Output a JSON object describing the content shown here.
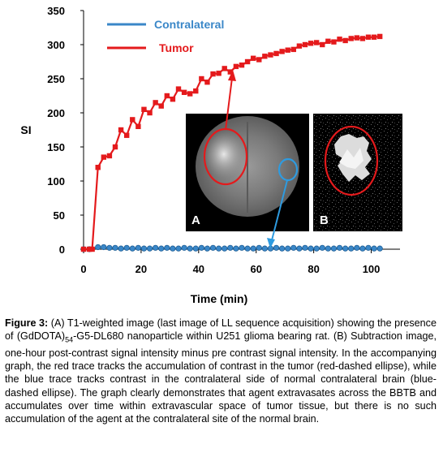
{
  "chart_data": {
    "type": "line",
    "xlabel": "Time (min)",
    "ylabel": "SI",
    "xlim": [
      0,
      110
    ],
    "ylim": [
      0,
      350
    ],
    "x_ticks": [
      "0",
      "20",
      "40",
      "60",
      "80",
      "100"
    ],
    "y_ticks": [
      "0",
      "50",
      "100",
      "150",
      "200",
      "250",
      "300",
      "350"
    ],
    "legend_position": "top",
    "series": [
      {
        "name": "Contralateral",
        "color": "#3a87c8",
        "marker": "circle",
        "x": [
          0,
          2,
          5,
          7,
          9,
          11,
          13,
          15,
          17,
          19,
          21,
          23,
          25,
          27,
          29,
          31,
          33,
          35,
          37,
          39,
          41,
          43,
          45,
          47,
          49,
          51,
          53,
          55,
          57,
          59,
          61,
          63,
          65,
          67,
          69,
          71,
          73,
          75,
          77,
          79,
          81,
          83,
          85,
          87,
          89,
          91,
          93,
          95,
          97,
          99,
          101,
          103
        ],
        "values": [
          0,
          0,
          3,
          3,
          2,
          2,
          1,
          2,
          1,
          2,
          1,
          1,
          2,
          1,
          2,
          1,
          1,
          2,
          1,
          1,
          2,
          1,
          2,
          1,
          1,
          2,
          1,
          2,
          1,
          1,
          2,
          1,
          1,
          2,
          1,
          1,
          2,
          1,
          2,
          1,
          1,
          2,
          1,
          1,
          2,
          1,
          1,
          2,
          1,
          2,
          1,
          1
        ]
      },
      {
        "name": "Tumor",
        "color": "#e41a1c",
        "marker": "square",
        "x": [
          0,
          2,
          3,
          5,
          7,
          9,
          11,
          13,
          15,
          17,
          19,
          21,
          23,
          25,
          27,
          29,
          31,
          33,
          35,
          37,
          39,
          41,
          43,
          45,
          47,
          49,
          51,
          53,
          55,
          57,
          59,
          61,
          63,
          65,
          67,
          69,
          71,
          73,
          75,
          77,
          79,
          81,
          83,
          85,
          87,
          89,
          91,
          93,
          95,
          97,
          99,
          101,
          103
        ],
        "values": [
          0,
          0,
          0,
          120,
          135,
          137,
          150,
          175,
          167,
          190,
          180,
          205,
          200,
          215,
          210,
          225,
          220,
          235,
          230,
          228,
          232,
          250,
          245,
          257,
          258,
          265,
          260,
          268,
          270,
          275,
          280,
          278,
          283,
          285,
          287,
          290,
          292,
          293,
          298,
          300,
          302,
          303,
          300,
          305,
          304,
          308,
          306,
          309,
          310,
          309,
          311,
          311,
          312
        ]
      }
    ]
  },
  "panels": {
    "a_label": "A",
    "b_label": "B"
  },
  "caption": {
    "label": "Figure 3:",
    "text_before_sub": " (A) T1-weighted image (last image of LL sequence acquisition) showing the presence of (GdDOTA)",
    "subscript": "54",
    "text_after_sub": "-G5-DL680 nanoparticle within U251 glioma bearing rat. (B) Subtraction image, one-hour post-contrast signal intensity minus pre contrast signal intensity. In the accompanying graph, the red trace tracks the accumulation of contrast in the tumor (red-dashed ellipse), while the blue trace tracks contrast in the contralateral side of normal contralateral brain (blue-dashed ellipse). The graph clearly demonstrates that agent extravasates across the BBTB and accumulates over time within extravascular space of tumor tissue, but there is no such accumulation of the agent at the contralateral site of the normal brain."
  }
}
